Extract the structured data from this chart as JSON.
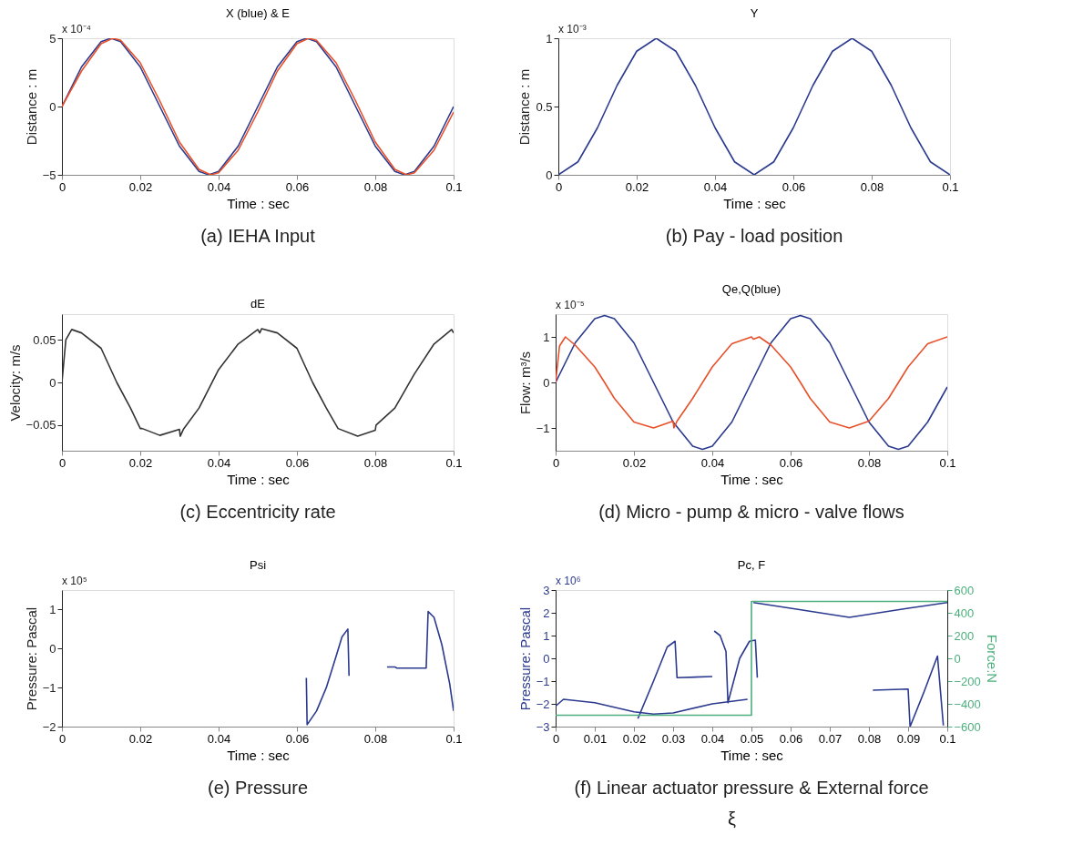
{
  "chart_data": [
    {
      "type": "line",
      "title": "X (blue) & E",
      "subtitle": "(a) IEHA Input",
      "xlabel": "Time : sec",
      "ylabel": "Distance : m",
      "annotations": [
        "x 10⁻⁴"
      ],
      "xlim": [
        0,
        0.1
      ],
      "xticks": [
        0,
        0.02,
        0.04,
        0.06,
        0.08,
        0.1
      ],
      "ylim": [
        -5,
        5
      ],
      "yticks": [
        -5,
        0,
        5
      ],
      "series": [
        {
          "color": "#2b3a8f",
          "x": [
            0,
            0.005,
            0.01,
            0.0125,
            0.015,
            0.02,
            0.025,
            0.03,
            0.035,
            0.0375,
            0.04,
            0.045,
            0.05,
            0.055,
            0.06,
            0.0625,
            0.065,
            0.07,
            0.075,
            0.08,
            0.085,
            0.0875,
            0.09,
            0.095,
            0.1
          ],
          "values": [
            0,
            2.9,
            4.75,
            5,
            4.75,
            2.9,
            0,
            -2.9,
            -4.75,
            -5,
            -4.75,
            -2.9,
            0,
            2.9,
            4.75,
            5,
            4.75,
            2.9,
            0,
            -2.9,
            -4.75,
            -5,
            -4.75,
            -2.9,
            0
          ]
        },
        {
          "color": "#e8502a",
          "x": [
            0,
            0.005,
            0.01,
            0.013,
            0.015,
            0.02,
            0.025,
            0.03,
            0.035,
            0.038,
            0.04,
            0.045,
            0.05,
            0.055,
            0.06,
            0.063,
            0.065,
            0.07,
            0.075,
            0.08,
            0.085,
            0.088,
            0.09,
            0.095,
            0.1
          ],
          "values": [
            0,
            2.6,
            4.6,
            5,
            4.85,
            3.2,
            0.4,
            -2.6,
            -4.6,
            -5,
            -4.85,
            -3.2,
            -0.4,
            2.6,
            4.6,
            5,
            4.85,
            3.2,
            0.4,
            -2.6,
            -4.6,
            -5,
            -4.85,
            -3.2,
            -0.4
          ]
        }
      ]
    },
    {
      "type": "line",
      "title": "Y",
      "subtitle": "(b) Pay - load position",
      "xlabel": "Time : sec",
      "ylabel": "Distance : m",
      "annotations": [
        "x 10⁻³"
      ],
      "xlim": [
        0,
        0.1
      ],
      "xticks": [
        0,
        0.02,
        0.04,
        0.06,
        0.08,
        0.1
      ],
      "ylim": [
        0,
        1
      ],
      "yticks": [
        0,
        0.5,
        1
      ],
      "series": [
        {
          "color": "#2b3a8f",
          "x": [
            0,
            0.005,
            0.01,
            0.015,
            0.02,
            0.025,
            0.03,
            0.035,
            0.04,
            0.045,
            0.05,
            0.055,
            0.06,
            0.065,
            0.07,
            0.075,
            0.08,
            0.085,
            0.09,
            0.095,
            0.1
          ],
          "values": [
            0,
            0.095,
            0.345,
            0.655,
            0.905,
            1,
            0.905,
            0.655,
            0.345,
            0.095,
            0,
            0.095,
            0.345,
            0.655,
            0.905,
            1,
            0.905,
            0.655,
            0.345,
            0.095,
            0
          ]
        }
      ]
    },
    {
      "type": "line",
      "title": "dE",
      "subtitle": "(c) Eccentricity rate",
      "xlabel": "Time : sec",
      "ylabel": "Velocity: m/s",
      "xlim": [
        0,
        0.1
      ],
      "xticks": [
        0,
        0.02,
        0.04,
        0.06,
        0.08,
        0.1
      ],
      "ylim": [
        -0.08,
        0.08
      ],
      "yticks": [
        -0.05,
        0,
        0.05
      ],
      "series": [
        {
          "color": "#333333",
          "x": [
            0,
            0.001,
            0.0025,
            0.005,
            0.01,
            0.014,
            0.0175,
            0.02,
            0.0205,
            0.025,
            0.03,
            0.0302,
            0.031,
            0.035,
            0.04,
            0.045,
            0.05,
            0.0505,
            0.051,
            0.055,
            0.06,
            0.064,
            0.0675,
            0.07,
            0.0705,
            0.0755,
            0.08,
            0.0802,
            0.085,
            0.09,
            0.095,
            0.0995,
            0.1
          ],
          "values": [
            0,
            0.05,
            0.062,
            0.058,
            0.04,
            0,
            -0.03,
            -0.054,
            -0.054,
            -0.062,
            -0.055,
            -0.063,
            -0.055,
            -0.03,
            0.015,
            0.045,
            0.062,
            0.058,
            0.063,
            0.058,
            0.04,
            0,
            -0.03,
            -0.05,
            -0.054,
            -0.063,
            -0.056,
            -0.05,
            -0.03,
            0.01,
            0.045,
            0.062,
            0.058
          ]
        }
      ]
    },
    {
      "type": "line",
      "title": "Qe,Q(blue)",
      "subtitle": "(d) Micro - pump & micro - valve flows",
      "xlabel": "Time : sec",
      "ylabel": "Flow: m³/s",
      "annotations": [
        "x 10⁻⁵"
      ],
      "xlim": [
        0,
        0.1
      ],
      "xticks": [
        0,
        0.02,
        0.04,
        0.06,
        0.08,
        0.1
      ],
      "ylim": [
        -1.5,
        1.5
      ],
      "yticks": [
        -1,
        0,
        1
      ],
      "series": [
        {
          "color": "#2b3a8f",
          "x": [
            0,
            0.005,
            0.01,
            0.0125,
            0.015,
            0.02,
            0.025,
            0.03,
            0.035,
            0.0375,
            0.04,
            0.045,
            0.05,
            0.055,
            0.06,
            0.0625,
            0.065,
            0.07,
            0.075,
            0.08,
            0.085,
            0.0875,
            0.09,
            0.095,
            0.1
          ],
          "values": [
            0,
            0.87,
            1.4,
            1.47,
            1.4,
            0.87,
            0,
            -0.87,
            -1.4,
            -1.47,
            -1.4,
            -0.87,
            0,
            0.87,
            1.4,
            1.47,
            1.4,
            0.87,
            0,
            -0.87,
            -1.4,
            -1.47,
            -1.4,
            -0.87,
            -0.1
          ]
        },
        {
          "color": "#e8502a",
          "x": [
            0,
            0.001,
            0.0025,
            0.005,
            0.01,
            0.0125,
            0.015,
            0.02,
            0.025,
            0.03,
            0.0302,
            0.031,
            0.035,
            0.04,
            0.045,
            0.05,
            0.0505,
            0.052,
            0.055,
            0.06,
            0.0625,
            0.065,
            0.07,
            0.075,
            0.08,
            0.085,
            0.09,
            0.095,
            0.1
          ],
          "values": [
            0,
            0.8,
            1.0,
            0.82,
            0.34,
            0,
            -0.35,
            -0.87,
            -1.0,
            -0.85,
            -1.0,
            -0.85,
            -0.35,
            0.34,
            0.85,
            1.0,
            0.95,
            1.0,
            0.82,
            0.34,
            0,
            -0.35,
            -0.87,
            -1.0,
            -0.85,
            -0.35,
            0.34,
            0.85,
            1.0
          ]
        }
      ]
    },
    {
      "type": "line",
      "title": "Psi",
      "subtitle": "(e)    Pressure",
      "xlabel": "Time : sec",
      "ylabel": "Pressure: Pascal",
      "annotations": [
        "x 10⁵"
      ],
      "xlim": [
        0,
        0.1
      ],
      "xticks": [
        0,
        0.02,
        0.04,
        0.06,
        0.08,
        0.1
      ],
      "ylim": [
        -2,
        1.5
      ],
      "yticks": [
        -2,
        -1,
        0,
        1
      ],
      "series": [
        {
          "color": "#2b3a8f",
          "x": [
            0.0624,
            0.0626,
            0.065,
            0.0675,
            0.07,
            0.0715,
            0.073,
            0.0733,
            0.078,
            0.083,
            0.085,
            0.0855,
            0.093,
            0.0935,
            0.095,
            0.097,
            0.099,
            0.1
          ],
          "values": [
            -0.75,
            -1.95,
            -1.6,
            -1.0,
            -0.2,
            0.3,
            0.5,
            -0.7,
            null,
            -0.47,
            -0.47,
            -0.5,
            -0.5,
            0.95,
            0.8,
            0.1,
            -0.9,
            -1.6
          ]
        }
      ]
    },
    {
      "type": "line",
      "title": "Pc, F",
      "subtitle": "(f) Linear actuator pressure & External force",
      "xlabel": "Time : sec",
      "ylabel": "Pressure: Pascal",
      "y2label": "Force:N",
      "annotations": [
        "x 10⁶",
        "ξ"
      ],
      "xlim": [
        0,
        0.1
      ],
      "xticks": [
        0,
        0.01,
        0.02,
        0.03,
        0.04,
        0.05,
        0.06,
        0.07,
        0.08,
        0.09,
        0.1
      ],
      "ylim": [
        -3,
        3
      ],
      "yticks": [
        -3,
        -2,
        -1,
        0,
        1,
        2,
        3
      ],
      "y2lim": [
        -600,
        600
      ],
      "y2ticks": [
        -600,
        -400,
        -200,
        0,
        200,
        400,
        600
      ],
      "series": [
        {
          "color": "#2b3a8f",
          "x": [
            0,
            0.002,
            0.01,
            0.02,
            0.025,
            0.03,
            0.04,
            0.049,
            0.05,
            0.0505,
            0.06,
            0.075,
            0.09,
            0.1
          ],
          "values": [
            -2.1,
            -1.8,
            -1.95,
            -2.35,
            -2.45,
            -2.4,
            -2.0,
            -1.8,
            null,
            2.45,
            2.2,
            1.8,
            2.2,
            2.45
          ]
        },
        {
          "color": "#2b3a8f",
          "x": [
            0.021,
            0.025,
            0.0285,
            0.0305,
            0.031,
            0.04,
            0.0402,
            0.0405,
            0.042,
            0.0435,
            0.044,
            0.047,
            0.0495,
            0.051,
            0.0515,
            0.07,
            0.081,
            0.09,
            0.0905,
            0.094,
            0.0975,
            0.099
          ],
          "values": [
            -2.65,
            -1.0,
            0.5,
            0.75,
            -0.85,
            -0.8,
            null,
            1.2,
            1.0,
            0.3,
            -1.95,
            0.0,
            0.75,
            0.8,
            -0.85,
            null,
            -1.4,
            -1.35,
            -3.0,
            -1.5,
            0.1,
            -2.95
          ]
        },
        {
          "color": "#4caf7d",
          "axis": "y2",
          "x": [
            0,
            0.05,
            0.05,
            0.1
          ],
          "values": [
            -500,
            -500,
            500,
            500
          ]
        }
      ]
    }
  ]
}
